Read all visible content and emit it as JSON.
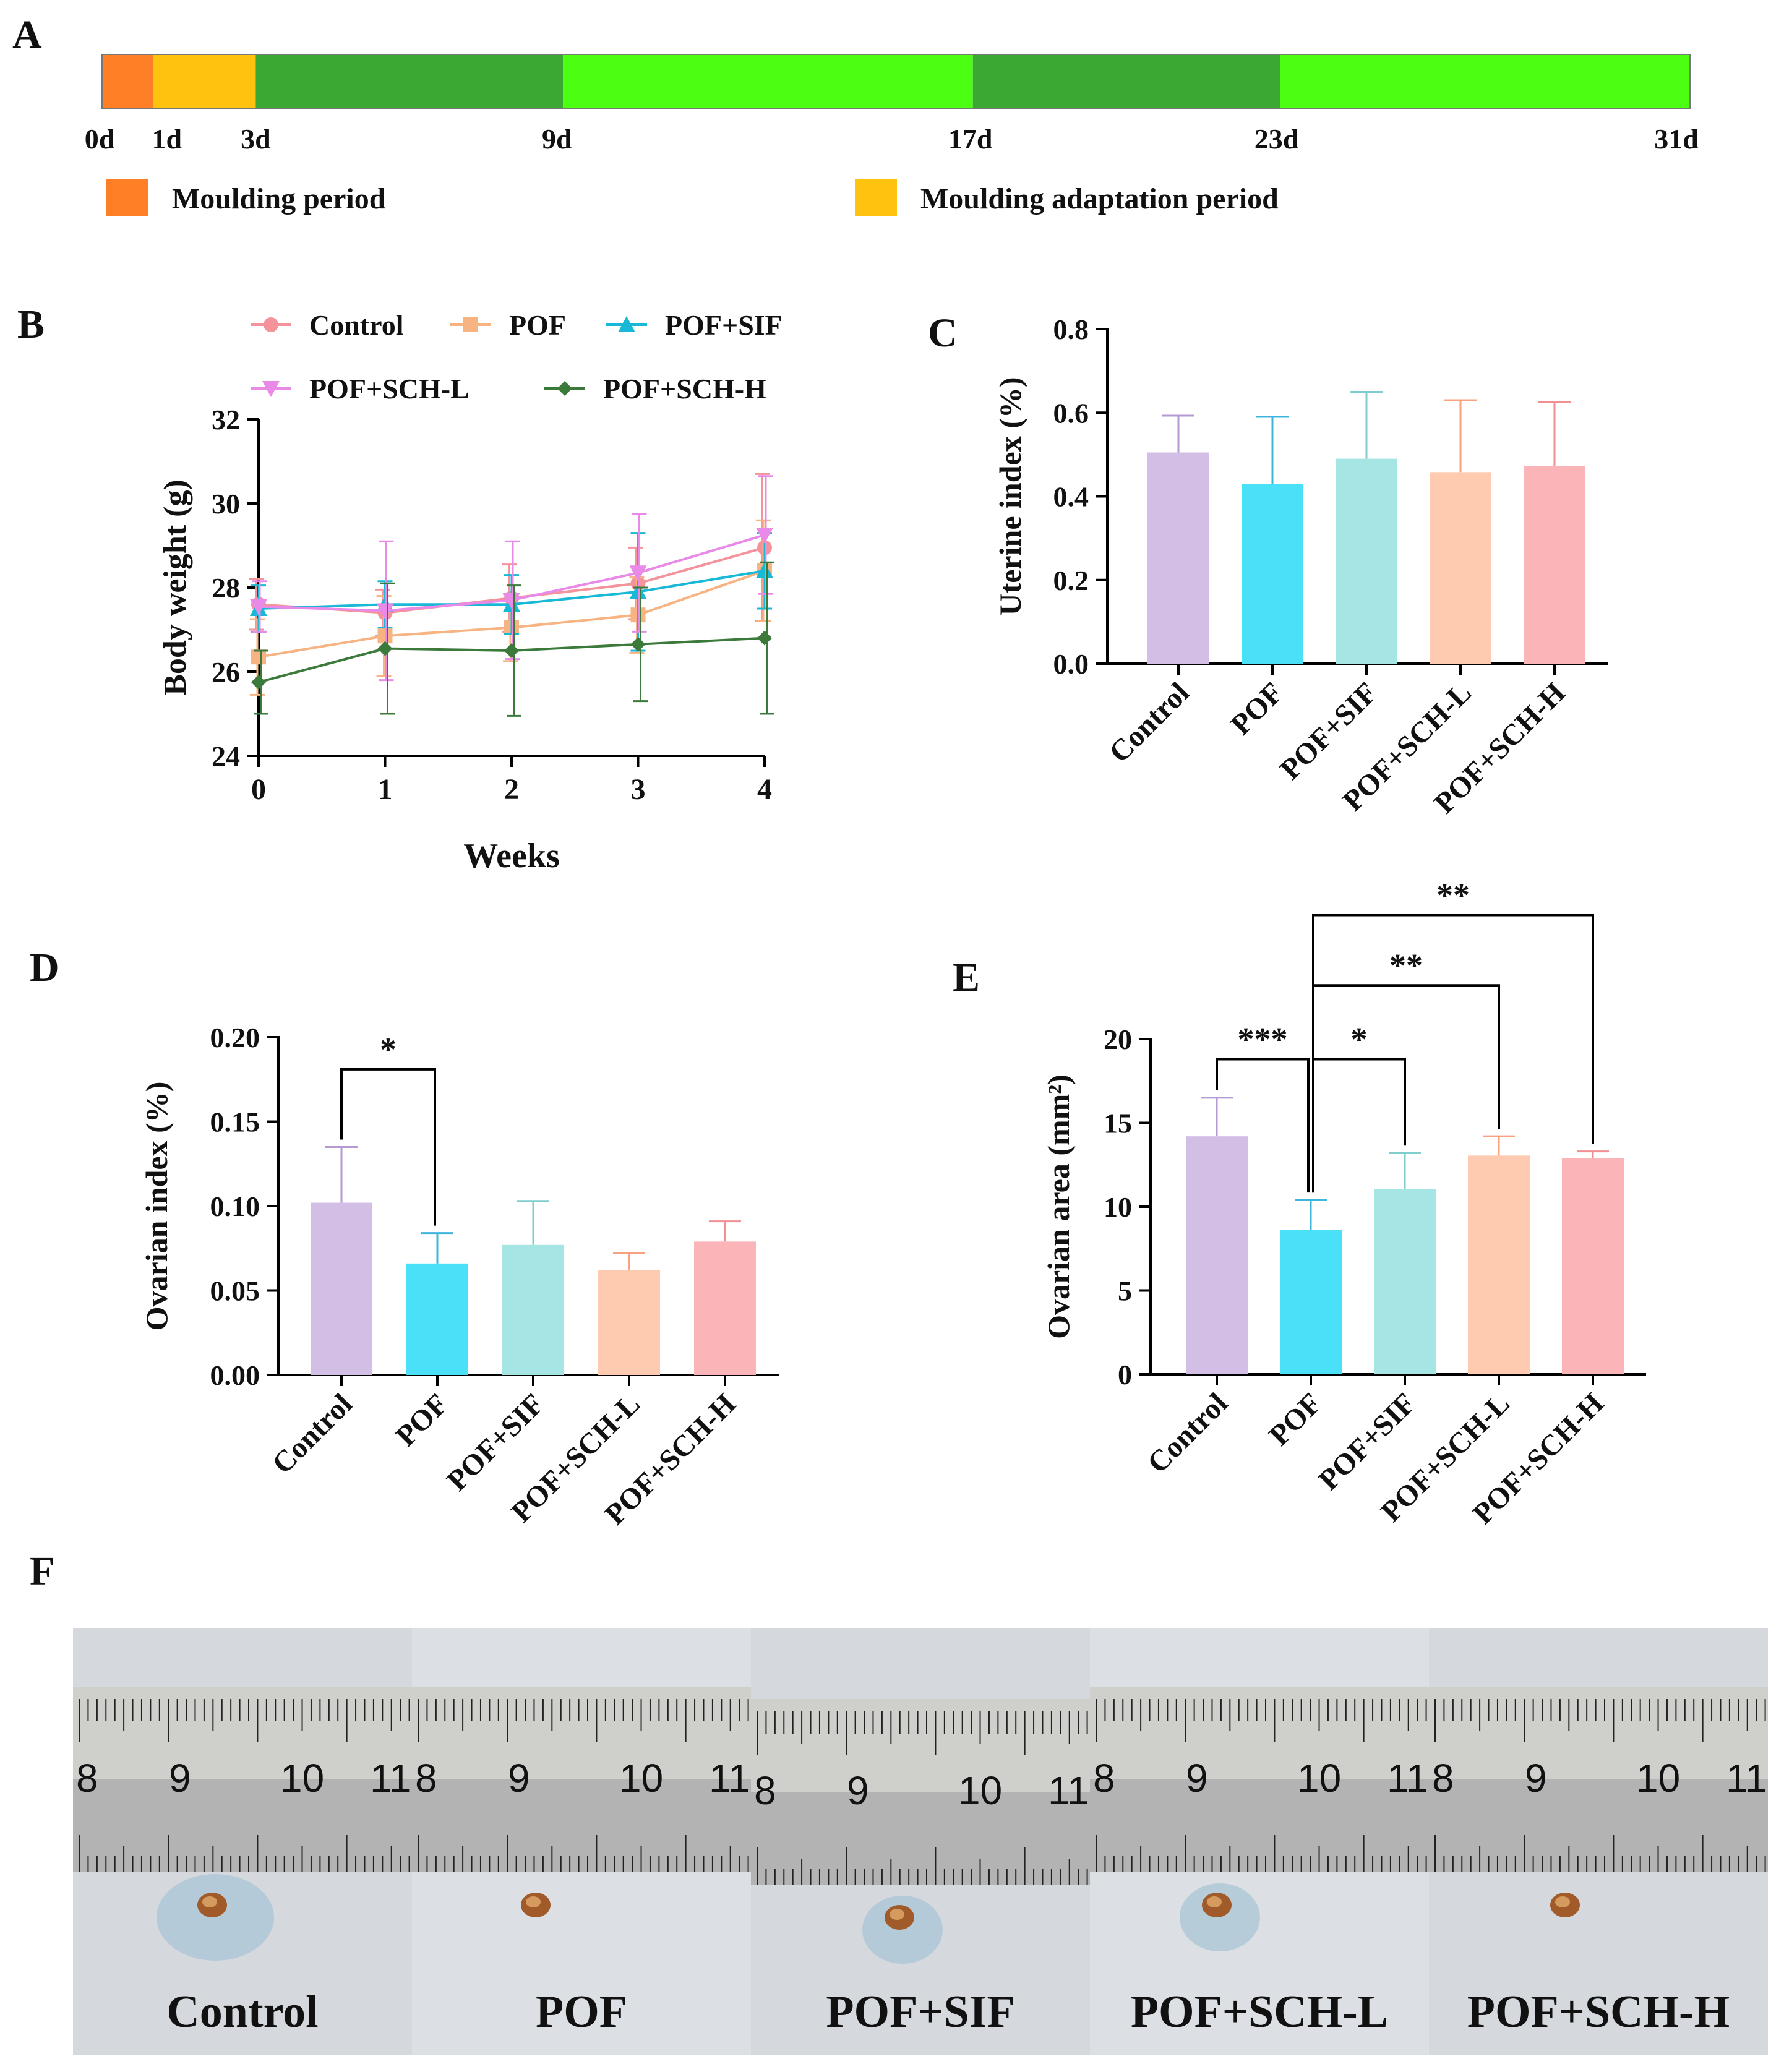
{
  "colors": {
    "molding": "#ff7f27",
    "adaptation": "#ffc20e",
    "dark_green": "#3aa833",
    "light_green": "#4cff12",
    "groups": [
      "#d3bfe6",
      "#49e0f8",
      "#a5e5e4",
      "#ffcbb0",
      "#fbb5b8"
    ],
    "group_errors": [
      "#b69ad2",
      "#3fb5dd",
      "#7fcdcf",
      "#f9a27f",
      "#f18f93"
    ],
    "lines": [
      "#f4939b",
      "#f7b482",
      "#18b8d6",
      "#e98ae9",
      "#3c7a3c"
    ],
    "ruler_bg": "#cfcfcc",
    "paper_bg": "#d9dce0"
  },
  "panels": {
    "A": "A",
    "B": "B",
    "C": "C",
    "D": "D",
    "E": "E",
    "F": "F"
  },
  "chart_data": [
    {
      "id": "A",
      "type": "timeline",
      "segments": [
        {
          "start": 0,
          "end": 1,
          "color": "molding"
        },
        {
          "start": 1,
          "end": 3,
          "color": "adaptation"
        },
        {
          "start": 3,
          "end": 9,
          "color": "dark_green"
        },
        {
          "start": 9,
          "end": 17,
          "color": "light_green"
        },
        {
          "start": 17,
          "end": 23,
          "color": "dark_green"
        },
        {
          "start": 23,
          "end": 31,
          "color": "light_green"
        }
      ],
      "ticks": [
        {
          "day": 0,
          "label": "0d"
        },
        {
          "day": 1,
          "label": "1d"
        },
        {
          "day": 3,
          "label": "3d"
        },
        {
          "day": 9,
          "label": "9d"
        },
        {
          "day": 17,
          "label": "17d"
        },
        {
          "day": 23,
          "label": "23d"
        },
        {
          "day": 31,
          "label": "31d"
        }
      ],
      "legend": [
        {
          "label": "Moulding period",
          "color": "molding"
        },
        {
          "label": "Moulding adaptation period",
          "color": "adaptation"
        }
      ]
    },
    {
      "id": "B",
      "type": "line",
      "xlabel": "Weeks",
      "ylabel": "Body weight  (g)",
      "x": [
        0,
        1,
        2,
        3,
        4
      ],
      "xticks": [
        "0",
        "1",
        "2",
        "3",
        "4"
      ],
      "ylim": [
        24,
        32
      ],
      "yticks": [
        "24",
        "26",
        "28",
        "30",
        "32"
      ],
      "series": [
        {
          "name": "Control",
          "marker": "circle",
          "values": [
            27.6,
            27.4,
            27.75,
            28.1,
            28.95
          ],
          "err": [
            0.6,
            0.55,
            0.8,
            0.85,
            1.75
          ]
        },
        {
          "name": "POF",
          "marker": "square",
          "values": [
            26.35,
            26.85,
            27.05,
            27.35,
            28.4
          ],
          "err": [
            0.9,
            0.95,
            0.8,
            0.9,
            1.2
          ]
        },
        {
          "name": "POF+SIF",
          "marker": "triangle-up",
          "values": [
            27.5,
            27.6,
            27.6,
            27.9,
            28.4
          ],
          "err": [
            0.55,
            0.55,
            0.7,
            1.4,
            0.9
          ]
        },
        {
          "name": "POF+SCH-L",
          "marker": "triangle-down",
          "values": [
            27.55,
            27.45,
            27.7,
            28.35,
            29.25
          ],
          "err": [
            0.6,
            1.65,
            1.4,
            1.4,
            1.4
          ]
        },
        {
          "name": "POF+SCH-H",
          "marker": "diamond",
          "values": [
            25.75,
            26.55,
            26.5,
            26.65,
            26.8
          ],
          "err": [
            0.75,
            1.55,
            1.55,
            1.35,
            1.8
          ]
        }
      ]
    },
    {
      "id": "C",
      "type": "bar",
      "ylabel": "Uterine index (%)",
      "categories": [
        "Control",
        "POF",
        "POF+SIF",
        "POF+SCH-L",
        "POF+SCH-H"
      ],
      "values": [
        0.505,
        0.43,
        0.49,
        0.458,
        0.472
      ],
      "err": [
        0.088,
        0.16,
        0.16,
        0.172,
        0.154
      ],
      "ylim": [
        0,
        0.8
      ],
      "yticks": [
        "0.0",
        "0.2",
        "0.4",
        "0.6",
        "0.8"
      ],
      "sig": []
    },
    {
      "id": "D",
      "type": "bar",
      "ylabel": "Ovarian index (%)",
      "categories": [
        "Control",
        "POF",
        "POF+SIF",
        "POF+SCH-L",
        "POF+SCH-H"
      ],
      "values": [
        0.102,
        0.066,
        0.077,
        0.062,
        0.079
      ],
      "err": [
        0.033,
        0.018,
        0.026,
        0.01,
        0.012
      ],
      "ylim": [
        0,
        0.2
      ],
      "yticks": [
        "0.00",
        "0.05",
        "0.10",
        "0.15",
        "0.20"
      ],
      "sig": [
        {
          "from": 0,
          "to": 1,
          "label": "*",
          "y": 0.181
        }
      ]
    },
    {
      "id": "E",
      "type": "bar",
      "ylabel": "Ovarian area (mm²)",
      "categories": [
        "Control",
        "POF",
        "POF+SIF",
        "POF+SCH-L",
        "POF+SCH-H"
      ],
      "values": [
        14.2,
        8.6,
        11.05,
        13.05,
        12.9
      ],
      "err": [
        2.3,
        1.8,
        2.15,
        1.15,
        0.4
      ],
      "ylim": [
        0,
        20
      ],
      "yticks": [
        "0",
        "5",
        "10",
        "15",
        "20"
      ],
      "sig": [
        {
          "from": 0,
          "to": 1,
          "label": "***",
          "y": 18.8
        },
        {
          "from": 1,
          "to": 2,
          "label": "*",
          "y": 18.8
        },
        {
          "from": 1,
          "to": 3,
          "label": "**",
          "y": 23.2
        },
        {
          "from": 1,
          "to": 4,
          "label": "**",
          "y": 27.4
        }
      ]
    }
  ],
  "photo_labels": [
    "Control",
    "POF",
    "POF+SIF",
    "POF+SCH-L",
    "POF+SCH-H"
  ],
  "ruler_numbers": [
    [
      "8",
      "9",
      "10",
      "11"
    ],
    [
      "8",
      "9",
      "10",
      "11"
    ],
    [
      "8",
      "9",
      "10",
      "11"
    ],
    [
      "8",
      "9",
      "10",
      "11"
    ],
    [
      "8",
      "9",
      "10",
      "11"
    ]
  ]
}
